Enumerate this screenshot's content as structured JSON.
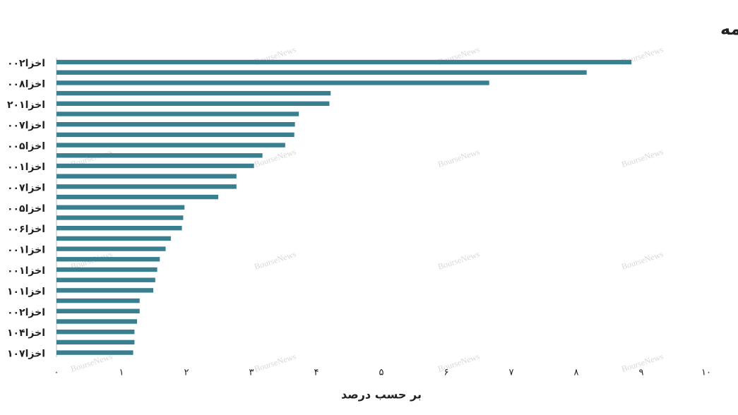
{
  "chart_data": {
    "type": "hbar",
    "title": "اوراق تحت مالکیت بیمه",
    "x_label": "بر حسب درصد",
    "watermark": "BourseNews",
    "categories": [
      "اخزا۰۰۲",
      null,
      "اخزا۰۰۸",
      null,
      "اخزا۲۰۱",
      null,
      "اخزا۰۰۷",
      null,
      "اخزا۰۰۵",
      null,
      "اخزا۰۰۱",
      null,
      "اخزا۰۰۷",
      null,
      "اخزا۰۰۵",
      null,
      "اخزا۰۰۶",
      null,
      "اخزا۰۰۱",
      null,
      "اخزا۰۰۱",
      null,
      "اخزا۱۰۱",
      null,
      "اخزا۰۰۲",
      null,
      "اخزا۱۰۴",
      null,
      "اخزا۱۰۷"
    ],
    "values": [
      8.85,
      8.16,
      6.66,
      4.22,
      4.2,
      3.73,
      3.67,
      3.66,
      3.52,
      3.17,
      3.04,
      2.77,
      2.77,
      2.49,
      1.97,
      1.95,
      1.93,
      1.76,
      1.68,
      1.59,
      1.55,
      1.52,
      1.49,
      1.28,
      1.28,
      1.24,
      1.2,
      1.2,
      1.18
    ],
    "color": "#3a7f8f",
    "xlim": [
      0,
      10
    ],
    "xticks": [
      {
        "value": 0,
        "label": "۰"
      },
      {
        "value": 1,
        "label": "۱"
      },
      {
        "value": 2,
        "label": "۲"
      },
      {
        "value": 3,
        "label": "۳"
      },
      {
        "value": 4,
        "label": "۴"
      },
      {
        "value": 5,
        "label": "۵"
      },
      {
        "value": 6,
        "label": "۶"
      },
      {
        "value": 7,
        "label": "۷"
      },
      {
        "value": 8,
        "label": "۸"
      },
      {
        "value": 9,
        "label": "۹"
      },
      {
        "value": 10,
        "label": "۱۰"
      }
    ]
  }
}
